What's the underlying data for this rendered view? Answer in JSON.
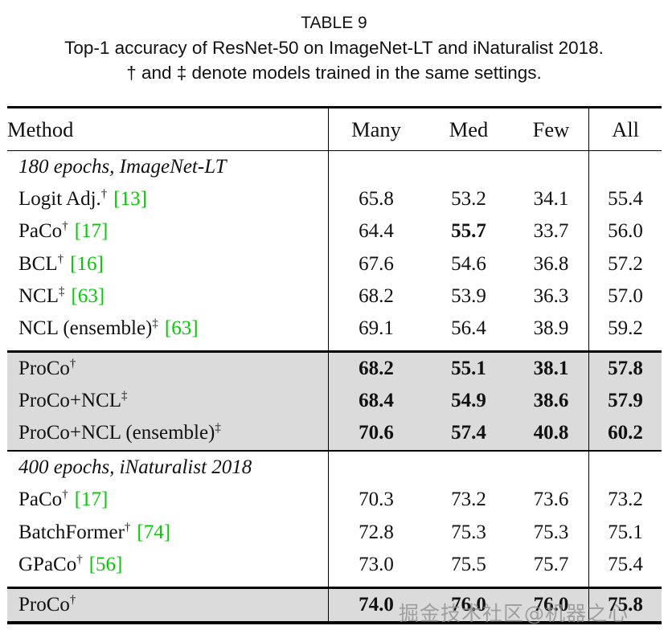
{
  "header": {
    "table_label": "TABLE 9",
    "caption_line1": "Top-1 accuracy of ResNet-50 on ImageNet-LT and iNaturalist 2018.",
    "caption_line2": "† and ‡ denote models trained in the same settings."
  },
  "columns": [
    "Method",
    "Many",
    "Med",
    "Few",
    "All"
  ],
  "sections": [
    {
      "label": "180 epochs, ImageNet-LT",
      "rows": [
        {
          "name": "Logit Adj.",
          "sup": "†",
          "cite": "[13]",
          "values": [
            "65.8",
            "53.2",
            "34.1",
            "55.4"
          ],
          "bold": [
            false,
            false,
            false,
            false
          ],
          "highlight": false
        },
        {
          "name": "PaCo",
          "sup": "†",
          "cite": "[17]",
          "values": [
            "64.4",
            "55.7",
            "33.7",
            "56.0"
          ],
          "bold": [
            false,
            true,
            false,
            false
          ],
          "highlight": false
        },
        {
          "name": "BCL",
          "sup": "†",
          "cite": "[16]",
          "values": [
            "67.6",
            "54.6",
            "36.8",
            "57.2"
          ],
          "bold": [
            false,
            false,
            false,
            false
          ],
          "highlight": false
        },
        {
          "name": "NCL",
          "sup": "‡",
          "cite": "[63]",
          "values": [
            "68.2",
            "53.9",
            "36.3",
            "57.0"
          ],
          "bold": [
            false,
            false,
            false,
            false
          ],
          "highlight": false
        },
        {
          "name": "NCL (ensemble)",
          "sup": "‡",
          "cite": "[63]",
          "values": [
            "69.1",
            "56.4",
            "38.9",
            "59.2"
          ],
          "bold": [
            false,
            false,
            false,
            false
          ],
          "highlight": false
        }
      ],
      "highlight_rows": [
        {
          "name": "ProCo",
          "sup": "†",
          "cite": "",
          "values": [
            "68.2",
            "55.1",
            "38.1",
            "57.8"
          ],
          "bold": [
            true,
            true,
            true,
            true
          ],
          "highlight": true
        },
        {
          "name": "ProCo+NCL",
          "sup": "‡",
          "cite": "",
          "values": [
            "68.4",
            "54.9",
            "38.6",
            "57.9"
          ],
          "bold": [
            true,
            true,
            true,
            true
          ],
          "highlight": true
        },
        {
          "name": "ProCo+NCL (ensemble)",
          "sup": "‡",
          "cite": "",
          "values": [
            "70.6",
            "57.4",
            "40.8",
            "60.2"
          ],
          "bold": [
            true,
            true,
            true,
            true
          ],
          "highlight": true
        }
      ]
    },
    {
      "label": "400 epochs, iNaturalist 2018",
      "rows": [
        {
          "name": "PaCo",
          "sup": "†",
          "cite": "[17]",
          "values": [
            "70.3",
            "73.2",
            "73.6",
            "73.2"
          ],
          "bold": [
            false,
            false,
            false,
            false
          ],
          "highlight": false
        },
        {
          "name": "BatchFormer",
          "sup": "†",
          "cite": "[74]",
          "values": [
            "72.8",
            "75.3",
            "75.3",
            "75.1"
          ],
          "bold": [
            false,
            false,
            false,
            false
          ],
          "highlight": false
        },
        {
          "name": "GPaCo",
          "sup": "†",
          "cite": "[56]",
          "values": [
            "73.0",
            "75.5",
            "75.7",
            "75.4"
          ],
          "bold": [
            false,
            false,
            false,
            false
          ],
          "highlight": false
        }
      ],
      "highlight_rows": [
        {
          "name": "ProCo",
          "sup": "†",
          "cite": "",
          "values": [
            "74.0",
            "76.0",
            "76.0",
            "75.8"
          ],
          "bold": [
            true,
            true,
            true,
            true
          ],
          "highlight": true
        }
      ]
    }
  ],
  "watermark": "掘金技术社区@机器之心",
  "colors": {
    "citation_green": "#00CC00",
    "highlight_bg": "#DBDBDB"
  }
}
